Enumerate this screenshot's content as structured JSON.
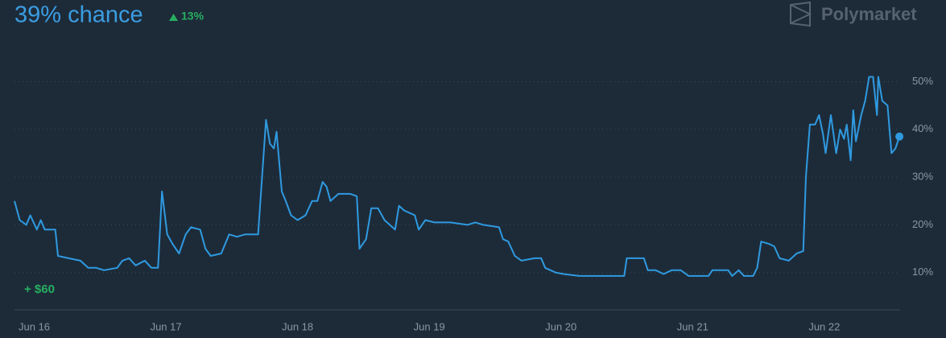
{
  "chart_data": {
    "type": "line",
    "title": "39% chance",
    "change": "13%",
    "brand": "Polymarket",
    "annotation": "+ $60",
    "x": [
      -0.15,
      -0.11,
      -0.06,
      -0.03,
      0.02,
      0.05,
      0.08,
      0.16,
      0.18,
      0.26,
      0.35,
      0.41,
      0.47,
      0.53,
      0.63,
      0.67,
      0.72,
      0.77,
      0.84,
      0.89,
      0.94,
      0.97,
      1.01,
      1.05,
      1.1,
      1.15,
      1.19,
      1.26,
      1.3,
      1.34,
      1.42,
      1.48,
      1.54,
      1.6,
      1.7,
      1.73,
      1.76,
      1.79,
      1.82,
      1.84,
      1.88,
      1.91,
      1.95,
      2.0,
      2.06,
      2.11,
      2.15,
      2.19,
      2.22,
      2.25,
      2.31,
      2.4,
      2.45,
      2.47,
      2.52,
      2.56,
      2.61,
      2.66,
      2.7,
      2.74,
      2.77,
      2.81,
      2.89,
      2.92,
      2.97,
      3.04,
      3.16,
      3.29,
      3.35,
      3.41,
      3.53,
      3.56,
      3.6,
      3.65,
      3.7,
      3.8,
      3.85,
      3.88,
      3.96,
      4.02,
      4.14,
      4.26,
      4.48,
      4.5,
      4.63,
      4.66,
      4.72,
      4.78,
      4.84,
      4.91,
      4.97,
      5.12,
      5.15,
      5.27,
      5.3,
      5.35,
      5.39,
      5.46,
      5.49,
      5.52,
      5.58,
      5.62,
      5.66,
      5.73,
      5.79,
      5.84,
      5.86,
      5.89,
      5.93,
      5.96,
      5.99,
      6.01,
      6.05,
      6.09,
      6.12,
      6.15,
      6.17,
      6.2,
      6.22,
      6.24,
      6.28,
      6.31,
      6.34,
      6.37,
      6.4,
      6.41,
      6.44,
      6.48,
      6.51,
      6.54,
      6.57
    ],
    "values": [
      25,
      21,
      20,
      22,
      19,
      21,
      19,
      19,
      13.5,
      13,
      12.5,
      11,
      11,
      10.5,
      11,
      12.5,
      13,
      11.5,
      12.5,
      11,
      11,
      27,
      18,
      16,
      14,
      18,
      19.5,
      19,
      15,
      13.5,
      14,
      18,
      17.5,
      18,
      18,
      30,
      42,
      37,
      36,
      39.5,
      27,
      25,
      22,
      21,
      22,
      25,
      25,
      29,
      28,
      25,
      26.5,
      26.5,
      26,
      15,
      17,
      23.5,
      23.5,
      21,
      20,
      19,
      24,
      23,
      22,
      19,
      21,
      20.5,
      20.5,
      20,
      20.5,
      20,
      19.5,
      17,
      16.5,
      13.5,
      12.5,
      13,
      13,
      11,
      10,
      9.7,
      9.3,
      9.3,
      9.3,
      13,
      13,
      10.5,
      10.5,
      9.7,
      10.5,
      10.5,
      9.3,
      9.3,
      10.5,
      10.5,
      9.3,
      10.5,
      9.3,
      9.3,
      11,
      16.5,
      16,
      15.5,
      13,
      12.5,
      14,
      14.5,
      30,
      41,
      41,
      43,
      39,
      35,
      43,
      35,
      40,
      38,
      41,
      33.5,
      44,
      37.5,
      43,
      46,
      51,
      51,
      43,
      51,
      46,
      45,
      35,
      36,
      38.5
    ],
    "color": "#2f9ae0",
    "xlim": [
      -0.15,
      6.6
    ],
    "xticks": [
      {
        "value": 0,
        "label": "Jun 16"
      },
      {
        "value": 1,
        "label": "Jun 17"
      },
      {
        "value": 2,
        "label": "Jun 18"
      },
      {
        "value": 3,
        "label": "Jun 19"
      },
      {
        "value": 4,
        "label": "Jun 20"
      },
      {
        "value": 5,
        "label": "Jun 21"
      },
      {
        "value": 6,
        "label": "Jun 22"
      }
    ],
    "ylim": [
      2.2,
      58
    ],
    "yticks": [
      {
        "value": 10,
        "label": "10%"
      },
      {
        "value": 20,
        "label": "20%"
      },
      {
        "value": 30,
        "label": "30%"
      },
      {
        "value": 40,
        "label": "40%"
      },
      {
        "value": 50,
        "label": "50%"
      }
    ],
    "grid": true
  }
}
